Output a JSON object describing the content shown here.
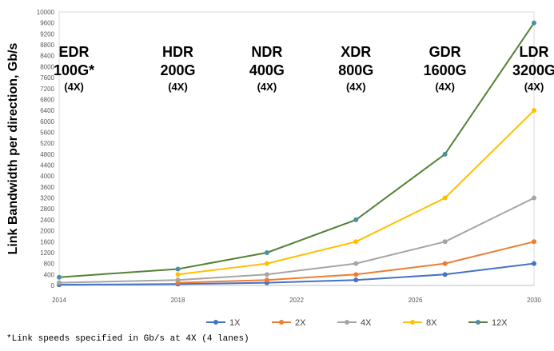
{
  "chart_data": {
    "type": "line",
    "title": "",
    "ylabel": "Link Bandwidth per direction, Gb/s",
    "xlabel": "",
    "xlim": [
      2014,
      2030
    ],
    "ylim": [
      0,
      10000
    ],
    "y_ticks": [
      0,
      400,
      800,
      1200,
      1600,
      2000,
      2400,
      2800,
      3200,
      3600,
      4000,
      4400,
      4800,
      5200,
      5600,
      6000,
      6400,
      6800,
      7200,
      7600,
      8000,
      8400,
      8800,
      9200,
      9600,
      10000
    ],
    "x_ticks": [
      2014,
      2018,
      2022,
      2026,
      2030
    ],
    "x_tick_labels": [
      "2014",
      "2018",
      "2022",
      "2026",
      "2030"
    ],
    "series": [
      {
        "name": "1X",
        "color": "#4472C4",
        "x": [
          2014,
          2018,
          2021,
          2024,
          2027,
          2030
        ],
        "values": [
          25,
          50,
          100,
          200,
          400,
          800
        ]
      },
      {
        "name": "2X",
        "color": "#ED7D31",
        "x": [
          2018,
          2021,
          2024,
          2027,
          2030
        ],
        "values": [
          100,
          200,
          400,
          800,
          1600
        ]
      },
      {
        "name": "4X",
        "color": "#A5A5A5",
        "x": [
          2014,
          2018,
          2021,
          2024,
          2027,
          2030
        ],
        "values": [
          100,
          200,
          400,
          800,
          1600,
          3200
        ]
      },
      {
        "name": "8X",
        "color": "#FFC000",
        "x": [
          2018,
          2021,
          2024,
          2027,
          2030
        ],
        "values": [
          400,
          800,
          1600,
          3200,
          6400
        ]
      },
      {
        "name": "12X",
        "color": "#548235",
        "marker_color": "#4A90A4",
        "x": [
          2014,
          2018,
          2021,
          2024,
          2027,
          2030
        ],
        "values": [
          300,
          600,
          1200,
          2400,
          4800,
          9600
        ]
      }
    ],
    "generations": [
      {
        "x": 2014.5,
        "name": "EDR",
        "speed": "100G*",
        "lanes": "(4X)"
      },
      {
        "x": 2018,
        "name": "HDR",
        "speed": "200G",
        "lanes": "(4X)"
      },
      {
        "x": 2021,
        "name": "NDR",
        "speed": "400G",
        "lanes": "(4X)"
      },
      {
        "x": 2024,
        "name": "XDR",
        "speed": "800G",
        "lanes": "(4X)"
      },
      {
        "x": 2027,
        "name": "GDR",
        "speed": "1600G",
        "lanes": "(4X)"
      },
      {
        "x": 2030,
        "name": "LDR",
        "speed": "3200G",
        "lanes": "(4X)"
      }
    ],
    "legend_position": "bottom"
  },
  "footnote": "*Link speeds specified in Gb/s at 4X (4 lanes)"
}
